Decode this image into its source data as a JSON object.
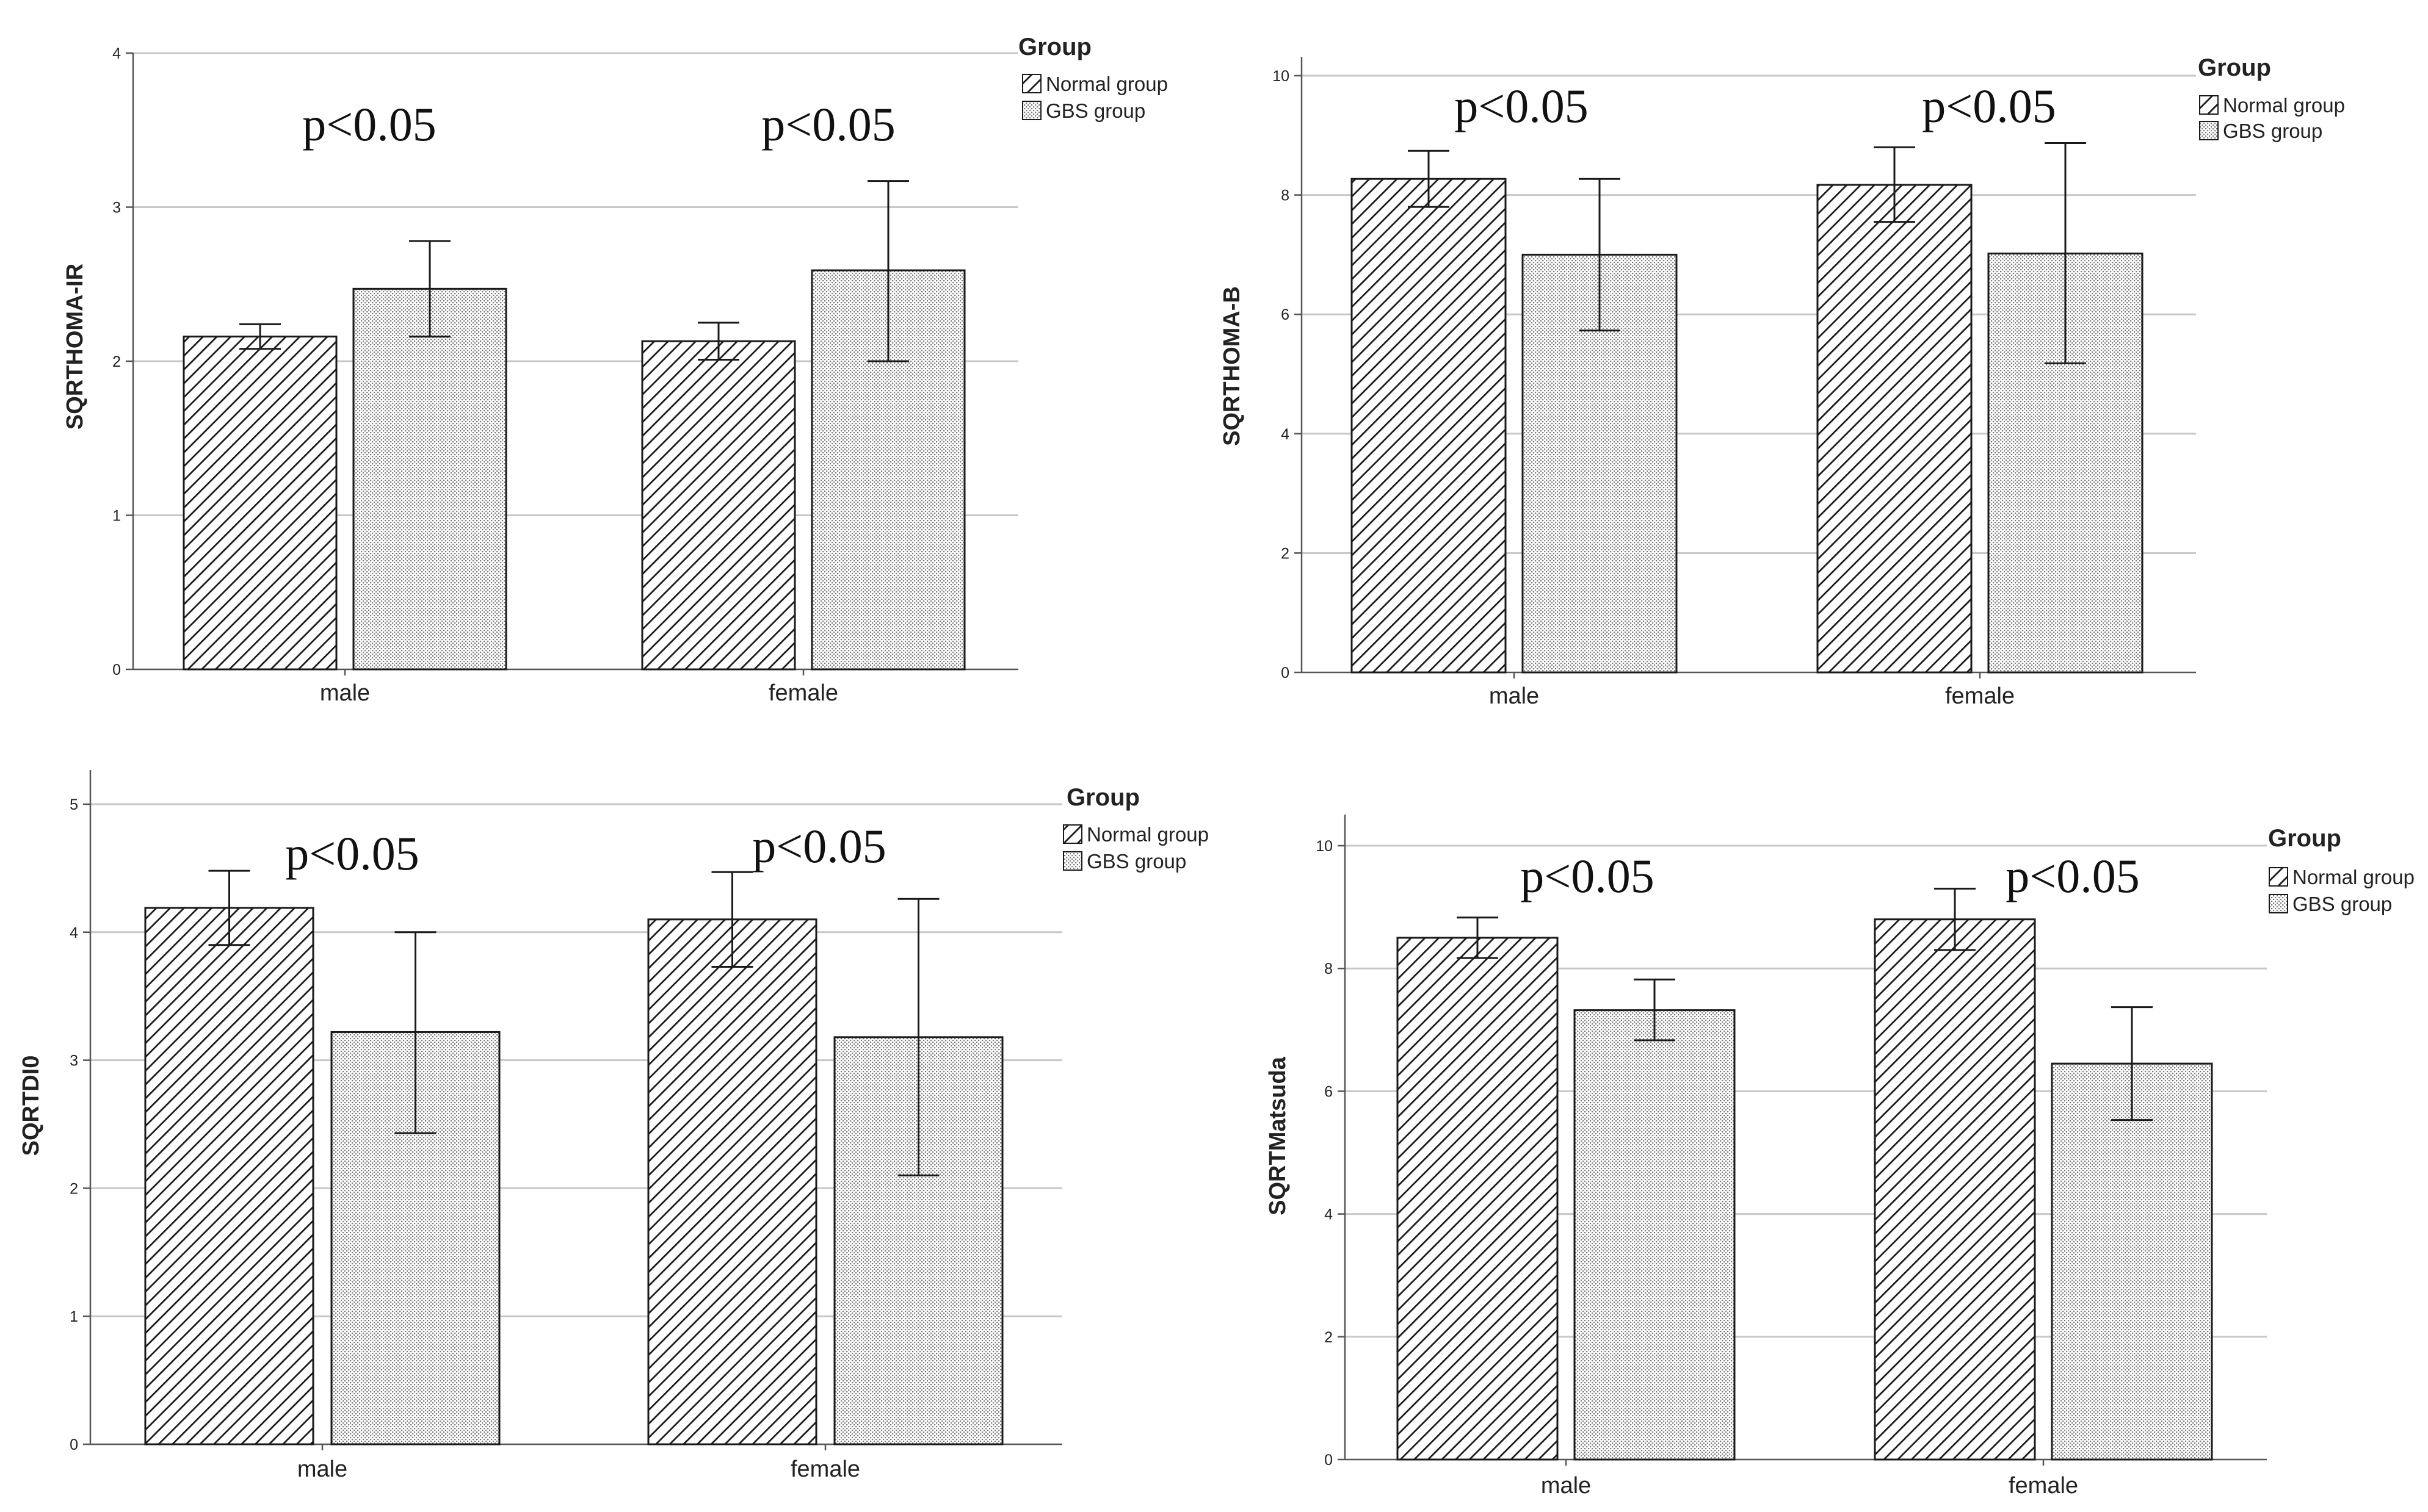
{
  "colors": {
    "grid": "#c8c8c8",
    "axis": "#555555",
    "bar_stroke": "#1a1a1a",
    "text": "#222222"
  },
  "chart_data": [
    {
      "type": "bar",
      "ylabel": "SQRTHOMA-IR",
      "ylim": [
        0,
        4
      ],
      "yticks": [
        0,
        1,
        2,
        3,
        4
      ],
      "categories": [
        "male",
        "female"
      ],
      "legend_title": "Group",
      "grid": true,
      "legend_position": "top-right",
      "series": [
        {
          "name": "Normal group",
          "pattern": "diagonal-hatch",
          "values": [
            2.16,
            2.13
          ],
          "err_low": [
            2.08,
            2.01
          ],
          "err_high": [
            2.24,
            2.25
          ]
        },
        {
          "name": "GBS group",
          "pattern": "dots",
          "values": [
            2.47,
            2.59
          ],
          "err_low": [
            2.16,
            2.0
          ],
          "err_high": [
            2.78,
            3.17
          ]
        }
      ],
      "annotations": [
        "p<0.05",
        "p<0.05"
      ]
    },
    {
      "type": "bar",
      "ylabel": "SQRTHOMA-B",
      "ylim": [
        0,
        10
      ],
      "yticks": [
        0,
        2,
        4,
        6,
        8,
        10
      ],
      "categories": [
        "male",
        "female"
      ],
      "legend_title": "Group",
      "grid": true,
      "legend_position": "top-right",
      "series": [
        {
          "name": "Normal group",
          "pattern": "diagonal-hatch",
          "values": [
            8.27,
            8.17
          ],
          "err_low": [
            7.8,
            7.55
          ],
          "err_high": [
            8.74,
            8.8
          ]
        },
        {
          "name": "GBS group",
          "pattern": "dots",
          "values": [
            7.0,
            7.02
          ],
          "err_low": [
            5.73,
            5.18
          ],
          "err_high": [
            8.27,
            8.87
          ]
        }
      ],
      "annotations": [
        "p<0.05",
        "p<0.05"
      ]
    },
    {
      "type": "bar",
      "ylabel": "SQRTDI0",
      "ylim": [
        0,
        5
      ],
      "yticks": [
        0,
        1,
        2,
        3,
        4,
        5
      ],
      "categories": [
        "male",
        "female"
      ],
      "legend_title": "Group",
      "grid": true,
      "legend_position": "top-right",
      "series": [
        {
          "name": "Normal group",
          "pattern": "diagonal-hatch",
          "values": [
            4.19,
            4.1
          ],
          "err_low": [
            3.9,
            3.73
          ],
          "err_high": [
            4.48,
            4.47
          ]
        },
        {
          "name": "GBS group",
          "pattern": "dots",
          "values": [
            3.22,
            3.18
          ],
          "err_low": [
            2.43,
            2.1
          ],
          "err_high": [
            4.0,
            4.26
          ]
        }
      ],
      "annotations": [
        "p<0.05",
        "p<0.05"
      ]
    },
    {
      "type": "bar",
      "ylabel": "SQRTMatsuda",
      "ylim": [
        0,
        10
      ],
      "yticks": [
        0,
        2,
        4,
        6,
        8,
        10
      ],
      "categories": [
        "male",
        "female"
      ],
      "legend_title": "Group",
      "grid": true,
      "legend_position": "top-right",
      "series": [
        {
          "name": "Normal group",
          "pattern": "diagonal-hatch",
          "values": [
            8.5,
            8.8
          ],
          "err_low": [
            8.17,
            8.3
          ],
          "err_high": [
            8.83,
            9.3
          ]
        },
        {
          "name": "GBS group",
          "pattern": "dots",
          "values": [
            7.32,
            6.45
          ],
          "err_low": [
            6.83,
            5.53
          ],
          "err_high": [
            7.82,
            7.37
          ]
        }
      ],
      "annotations": [
        "p<0.05",
        "p<0.05"
      ]
    }
  ]
}
